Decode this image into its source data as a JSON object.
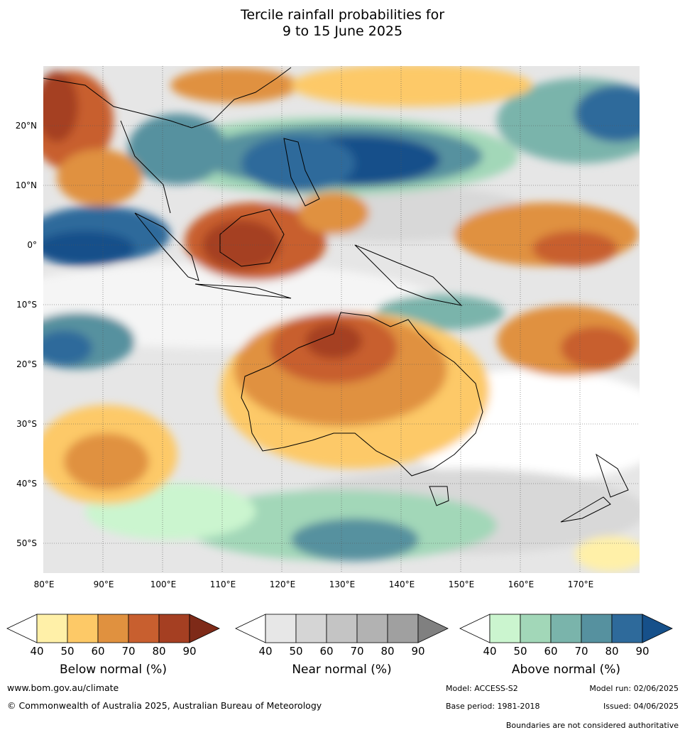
{
  "title_line1": "Tercile rainfall probabilities for",
  "title_line2": "9 to 15 June 2025",
  "latitudes": [
    "20°N",
    "10°N",
    "0°",
    "10°S",
    "20°S",
    "30°S",
    "40°S",
    "50°S"
  ],
  "longitudes": [
    "80°E",
    "90°E",
    "100°E",
    "110°E",
    "120°E",
    "130°E",
    "140°E",
    "150°E",
    "160°E",
    "170°E"
  ],
  "colorbars": [
    {
      "title": "Below normal (%)",
      "ticks": [
        "40",
        "50",
        "60",
        "70",
        "80",
        "90"
      ],
      "colors": [
        "#fff0a8",
        "#fdc967",
        "#e0913f",
        "#c85f2f",
        "#a53f22",
        "#7e2a18"
      ]
    },
    {
      "title": "Near normal (%)",
      "ticks": [
        "40",
        "50",
        "60",
        "70",
        "80",
        "90"
      ],
      "colors": [
        "#e7e7e7",
        "#d5d5d5",
        "#c4c4c4",
        "#b2b2b2",
        "#a0a0a0",
        "#808080"
      ]
    },
    {
      "title": "Above normal (%)",
      "ticks": [
        "40",
        "50",
        "60",
        "70",
        "80",
        "90"
      ],
      "colors": [
        "#cbf5cf",
        "#a2d7b8",
        "#7ab4ab",
        "#56919f",
        "#2e6a9b",
        "#16508a"
      ]
    }
  ],
  "footer": {
    "website": "www.bom.gov.au/climate",
    "copyright": "© Commonwealth of Australia 2025, Australian Bureau of Meteorology",
    "model": "Model: ACCESS-S2",
    "model_run": "Model run: 02/06/2025",
    "base_period": "Base period: 1981-2018",
    "issued": "Issued: 04/06/2025",
    "disclaimer": "Boundaries are not considered authoritative"
  }
}
